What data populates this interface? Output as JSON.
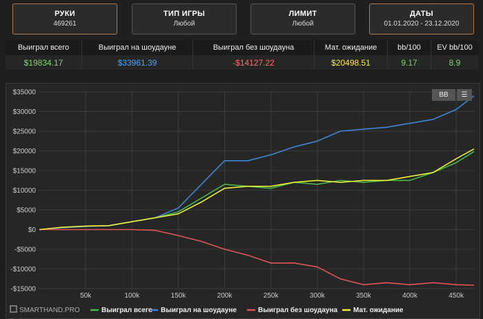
{
  "filters": [
    {
      "title": "РУКИ",
      "value": "469261",
      "highlight": true
    },
    {
      "title": "ТИП ИГРЫ",
      "value": "Любой",
      "highlight": false
    },
    {
      "title": "ЛИМИТ",
      "value": "Любой",
      "highlight": false
    },
    {
      "title": "ДАТЫ",
      "value": "01.01.2020 - 23.12.2020",
      "highlight": true
    }
  ],
  "stats": {
    "headers": [
      "Выиграл всего",
      "Выиграл на шоудауне",
      "Выиграл без шоудауна",
      "Мат. ожидание",
      "bb/100",
      "EV bb/100"
    ],
    "values": [
      "$19834.17",
      "$33961.39",
      "-$14127.22",
      "$20498.51",
      "9.17",
      "8.9"
    ],
    "value_colors": [
      "#7ed46a",
      "#4aa3ff",
      "#ff6b6b",
      "#ffe94a",
      "#7ed46a",
      "#7ed46a"
    ]
  },
  "toolbar": {
    "bb_label": "BB",
    "menu_icon": "hamburger-icon"
  },
  "credit": "SMARTHAND.PRO",
  "chart_data": {
    "type": "line",
    "x_tick_labels": [
      "50k",
      "100k",
      "150k",
      "200k",
      "250k",
      "300k",
      "350k",
      "400k",
      "450k"
    ],
    "x_ticks": [
      50000,
      100000,
      150000,
      200000,
      250000,
      300000,
      350000,
      400000,
      450000
    ],
    "y_tick_labels": [
      "$35000",
      "$30000",
      "$25000",
      "$20000",
      "$15000",
      "$10000",
      "$5000",
      "$0",
      "-$5000",
      "-$10000",
      "-$15000"
    ],
    "y_ticks": [
      35000,
      30000,
      25000,
      20000,
      15000,
      10000,
      5000,
      0,
      -5000,
      -10000,
      -15000
    ],
    "xlim": [
      0,
      469261
    ],
    "ylim": [
      -15000,
      35000
    ],
    "grid": true,
    "legend_position": "bottom",
    "series": [
      {
        "name": "Выиграл всего",
        "color": "#49b749",
        "x": [
          0,
          25000,
          50000,
          75000,
          100000,
          125000,
          150000,
          175000,
          200000,
          225000,
          250000,
          275000,
          300000,
          325000,
          350000,
          375000,
          400000,
          425000,
          450000,
          469261
        ],
        "y": [
          0,
          500,
          800,
          1000,
          2000,
          3000,
          4500,
          8000,
          11500,
          11000,
          10500,
          12000,
          11500,
          12500,
          12000,
          12500,
          12500,
          14500,
          17000,
          19834
        ]
      },
      {
        "name": "Выиграл на шоудауне",
        "color": "#3f85d6",
        "x": [
          0,
          25000,
          50000,
          75000,
          100000,
          125000,
          150000,
          175000,
          200000,
          225000,
          250000,
          275000,
          300000,
          325000,
          350000,
          375000,
          400000,
          425000,
          450000,
          469261
        ],
        "y": [
          0,
          500,
          800,
          1000,
          2000,
          3000,
          5500,
          11500,
          17500,
          17500,
          19000,
          21000,
          22500,
          25000,
          25500,
          26000,
          27000,
          28000,
          30500,
          33961
        ]
      },
      {
        "name": "Выиграл без шоудауна",
        "color": "#e05555",
        "x": [
          0,
          25000,
          50000,
          75000,
          100000,
          125000,
          150000,
          175000,
          200000,
          225000,
          250000,
          275000,
          300000,
          325000,
          350000,
          375000,
          400000,
          425000,
          450000,
          469261
        ],
        "y": [
          0,
          0,
          0,
          0,
          0,
          -200,
          -1500,
          -3000,
          -5000,
          -6500,
          -8500,
          -8500,
          -9500,
          -12500,
          -14000,
          -13500,
          -14000,
          -13500,
          -14000,
          -14127
        ]
      },
      {
        "name": "Мат. ожидание",
        "color": "#ecec3a",
        "x": [
          0,
          25000,
          50000,
          75000,
          100000,
          125000,
          150000,
          175000,
          200000,
          225000,
          250000,
          275000,
          300000,
          325000,
          350000,
          375000,
          400000,
          425000,
          450000,
          469261
        ],
        "y": [
          0,
          600,
          900,
          1000,
          2000,
          3000,
          4000,
          7000,
          10500,
          11000,
          11000,
          12000,
          12500,
          12000,
          12500,
          12500,
          13500,
          14500,
          18000,
          20498
        ]
      }
    ]
  }
}
